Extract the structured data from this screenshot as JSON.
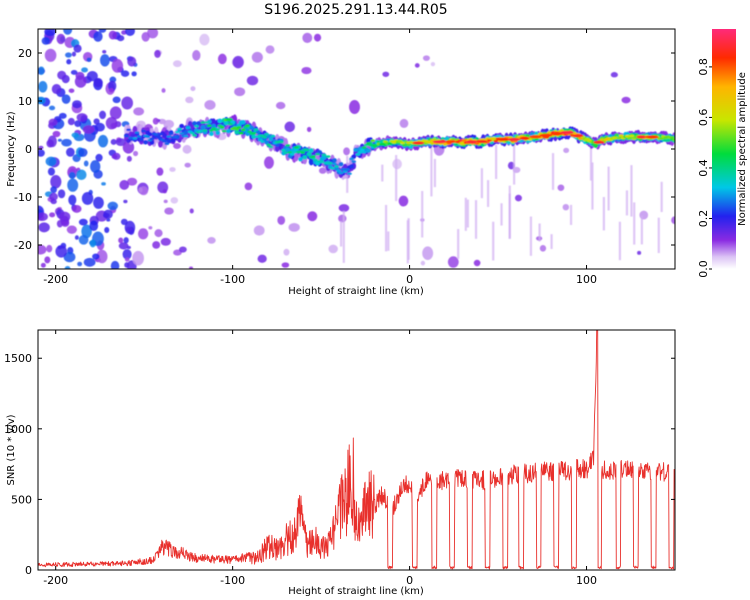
{
  "figure": {
    "title": "S196.2025.291.13.44.R05"
  },
  "colors": {
    "snr_line": "#e8302c",
    "axis": "#000000",
    "background": "#ffffff"
  },
  "chart_data": [
    {
      "type": "heatmap",
      "title": "",
      "xlabel": "Height of straight line (km)",
      "ylabel": "Frequency (Hz)",
      "xlim": [
        -210,
        150
      ],
      "ylim": [
        -25,
        25
      ],
      "xticks": [
        -200,
        -100,
        0,
        100
      ],
      "yticks": [
        -20,
        -10,
        0,
        10,
        20
      ],
      "colorbar": {
        "label": "Normalized spectral amplitude",
        "range": [
          0.0,
          0.95
        ],
        "ticks": [
          0.0,
          0.2,
          0.4,
          0.6,
          0.8
        ]
      },
      "ridge": {
        "description": "dominant frequency ridge vs height",
        "x": [
          -155,
          -140,
          -125,
          -110,
          -100,
          -90,
          -80,
          -70,
          -60,
          -50,
          -40,
          -35,
          -30,
          -20,
          -10,
          0,
          10,
          20,
          30,
          40,
          50,
          60,
          70,
          80,
          90,
          100,
          105,
          110,
          120,
          130,
          140,
          150
        ],
        "y": [
          3,
          2,
          4,
          4.5,
          5,
          4,
          2,
          0,
          -1,
          -2,
          -4,
          -5,
          -1,
          1,
          1.5,
          1,
          1.5,
          1.5,
          1.5,
          1.5,
          2,
          2,
          2.5,
          3,
          3.5,
          2,
          1,
          2,
          2.5,
          2.5,
          2.5,
          2
        ],
        "amplitude": [
          0.25,
          0.25,
          0.3,
          0.4,
          0.45,
          0.4,
          0.35,
          0.35,
          0.4,
          0.35,
          0.3,
          0.25,
          0.3,
          0.45,
          0.5,
          0.55,
          0.6,
          0.7,
          0.8,
          0.75,
          0.7,
          0.7,
          0.6,
          0.75,
          0.8,
          0.6,
          0.5,
          0.6,
          0.55,
          0.55,
          0.55,
          0.5
        ]
      },
      "noise_band": {
        "x_range": [
          -210,
          -155
        ],
        "amplitude_range": [
          0.1,
          0.3
        ]
      }
    },
    {
      "type": "line",
      "title": "",
      "xlabel": "Height of straight line (km)",
      "ylabel": "SNR (10 * v/v)",
      "xlim": [
        -210,
        150
      ],
      "ylim": [
        0,
        1700
      ],
      "xticks": [
        -200,
        -100,
        0,
        100
      ],
      "yticks": [
        0,
        500,
        1000,
        1500
      ],
      "series": [
        {
          "name": "SNR",
          "x": [
            -210,
            -160,
            -145,
            -140,
            -120,
            -100,
            -85,
            -80,
            -75,
            -70,
            -65,
            -62,
            -58,
            -55,
            -50,
            -45,
            -40,
            -35,
            -32,
            -30,
            -25,
            -20,
            -15,
            -10,
            -5,
            -2,
            0,
            5,
            10,
            15,
            20,
            30,
            40,
            50,
            60,
            70,
            80,
            90,
            95,
            100,
            104,
            106,
            108,
            110,
            115,
            120,
            130,
            140,
            150
          ],
          "y": [
            30,
            40,
            60,
            140,
            70,
            60,
            90,
            180,
            140,
            210,
            250,
            380,
            180,
            230,
            150,
            200,
            380,
            550,
            650,
            350,
            500,
            450,
            540,
            430,
            560,
            620,
            560,
            540,
            650,
            630,
            640,
            650,
            630,
            660,
            680,
            690,
            700,
            700,
            720,
            710,
            800,
            1700,
            650,
            720,
            700,
            720,
            700,
            700,
            680
          ]
        }
      ],
      "dropouts_near_zero_x": [
        -11,
        3,
        14,
        24,
        34,
        44,
        54,
        63,
        73,
        83,
        93,
        107,
        118,
        128,
        138,
        148
      ]
    }
  ]
}
